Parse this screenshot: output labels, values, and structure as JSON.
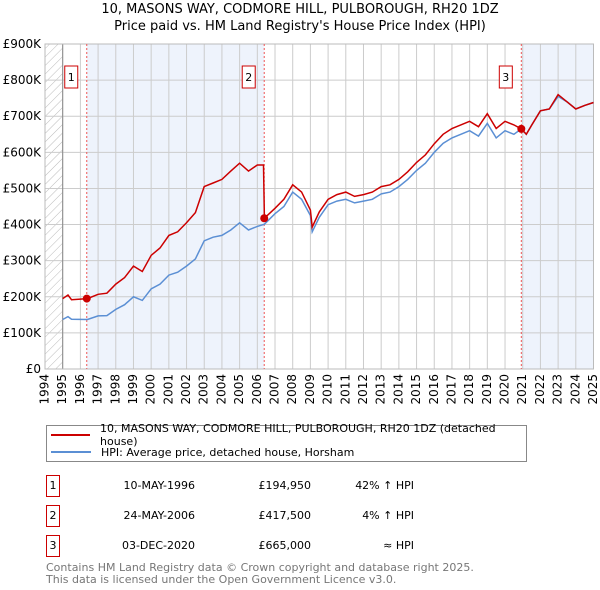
{
  "title": "10, MASONS WAY, CODMORE HILL, PULBOROUGH, RH20 1DZ",
  "subtitle": "Price paid vs. HM Land Registry's House Price Index (HPI)",
  "colors": {
    "property": "#cc0000",
    "hpi": "#5b8fd4",
    "shade": "#eef3fc"
  },
  "chart_data": {
    "type": "line",
    "title": "10, MASONS WAY, CODMORE HILL, PULBOROUGH, RH20 1DZ",
    "subtitle": "Price paid vs. HM Land Registry's House Price Index (HPI)",
    "xlim": [
      1994,
      2025
    ],
    "ylim": [
      0,
      900000
    ],
    "x_ticks": [
      "1994",
      "1995",
      "1996",
      "1997",
      "1998",
      "1999",
      "2000",
      "2001",
      "2002",
      "2003",
      "2004",
      "2005",
      "2006",
      "2007",
      "2008",
      "2009",
      "2010",
      "2011",
      "2012",
      "2013",
      "2014",
      "2015",
      "2016",
      "2017",
      "2018",
      "2019",
      "2020",
      "2021",
      "2022",
      "2023",
      "2024",
      "2025"
    ],
    "y_ticks": [
      {
        "v": 0,
        "label": "£0"
      },
      {
        "v": 100000,
        "label": "£100K"
      },
      {
        "v": 200000,
        "label": "£200K"
      },
      {
        "v": 300000,
        "label": "£300K"
      },
      {
        "v": 400000,
        "label": "£400K"
      },
      {
        "v": 500000,
        "label": "£500K"
      },
      {
        "v": 600000,
        "label": "£600K"
      },
      {
        "v": 700000,
        "label": "£700K"
      },
      {
        "v": 800000,
        "label": "£800K"
      },
      {
        "v": 900000,
        "label": "£900K"
      }
    ],
    "grid": true,
    "series": [
      {
        "name": "10, MASONS WAY, CODMORE HILL, PULBOROUGH, RH20 1DZ (detached house)",
        "x": [
          1995,
          1995.3,
          1995.5,
          1996.4,
          1997,
          1997.5,
          1998,
          1998.5,
          1999,
          1999.5,
          2000,
          2000.5,
          2001,
          2001.5,
          2002,
          2002.5,
          2003,
          2003.5,
          2004,
          2004.5,
          2005,
          2005.5,
          2006,
          2006.35,
          2006.4,
          2007,
          2007.5,
          2008,
          2008.5,
          2009,
          2009.1,
          2009.5,
          2010,
          2010.5,
          2011,
          2011.5,
          2012,
          2012.5,
          2013,
          2013.5,
          2014,
          2014.5,
          2015,
          2015.5,
          2016,
          2016.5,
          2017,
          2017.5,
          2018,
          2018.5,
          2019,
          2019.5,
          2020,
          2020.5,
          2020.92,
          2021.2,
          2021.5,
          2022,
          2022.5,
          2023,
          2023.5,
          2024,
          2024.5,
          2025
        ],
        "values": [
          195,
          205,
          192,
          195,
          207,
          210,
          235,
          253,
          285,
          270,
          315,
          335,
          370,
          380,
          405,
          433,
          505,
          515,
          525,
          548,
          570,
          548,
          565,
          565,
          417.5,
          445,
          470,
          510,
          490,
          440,
          393,
          435,
          470,
          483,
          490,
          478,
          483,
          490,
          505,
          510,
          525,
          546,
          572,
          593,
          624,
          650,
          666,
          676,
          686,
          671,
          707,
          666,
          686,
          676,
          665,
          650,
          675,
          715,
          720,
          760,
          740,
          720,
          730,
          738
        ]
      },
      {
        "name": "HPI: Average price, detached house, Horsham",
        "x": [
          1995,
          1995.3,
          1995.5,
          1996.4,
          1997,
          1997.5,
          1998,
          1998.5,
          1999,
          1999.5,
          2000,
          2000.5,
          2001,
          2001.5,
          2002,
          2002.5,
          2003,
          2003.5,
          2004,
          2004.5,
          2005,
          2005.5,
          2006,
          2006.4,
          2007,
          2007.5,
          2008,
          2008.5,
          2009,
          2009.1,
          2009.5,
          2010,
          2010.5,
          2011,
          2011.5,
          2012,
          2012.5,
          2013,
          2013.5,
          2014,
          2014.5,
          2015,
          2015.5,
          2016,
          2016.5,
          2017,
          2017.5,
          2018,
          2018.5,
          2019,
          2019.5,
          2020,
          2020.5,
          2020.92,
          2021.2,
          2021.5,
          2022,
          2022.5,
          2023,
          2023.5,
          2024,
          2024.5,
          2025
        ],
        "values": [
          137,
          145,
          138,
          137,
          147,
          148,
          165,
          178,
          200,
          190,
          222,
          235,
          260,
          268,
          285,
          305,
          355,
          365,
          370,
          385,
          405,
          385,
          395,
          401,
          430,
          450,
          490,
          470,
          425,
          380,
          420,
          455,
          465,
          470,
          460,
          465,
          470,
          485,
          490,
          505,
          525,
          550,
          570,
          600,
          625,
          640,
          650,
          660,
          645,
          680,
          640,
          660,
          650,
          665,
          650,
          675,
          715,
          720,
          755,
          740,
          720,
          730,
          738
        ]
      }
    ],
    "value_units": "thousands GBP",
    "sales": [
      {
        "label": "1",
        "x": 1996.36,
        "value": 194.95
      },
      {
        "label": "2",
        "x": 2006.39,
        "value": 417.5
      },
      {
        "label": "3",
        "x": 2020.92,
        "value": 665
      }
    ],
    "legend_position": "below"
  },
  "legend": [
    {
      "label": "10, MASONS WAY, CODMORE HILL, PULBOROUGH, RH20 1DZ (detached house)"
    },
    {
      "label": "HPI: Average price, detached house, Horsham"
    }
  ],
  "transactions": [
    {
      "num": "1",
      "date": "10-MAY-1996",
      "price": "£194,950",
      "hpi": "42% ↑ HPI"
    },
    {
      "num": "2",
      "date": "24-MAY-2006",
      "price": "£417,500",
      "hpi": "4% ↑ HPI"
    },
    {
      "num": "3",
      "date": "03-DEC-2020",
      "price": "£665,000",
      "hpi": "≈ HPI"
    }
  ],
  "footer": {
    "line1": "Contains HM Land Registry data © Crown copyright and database right 2025.",
    "line2": "This data is licensed under the Open Government Licence v3.0."
  }
}
